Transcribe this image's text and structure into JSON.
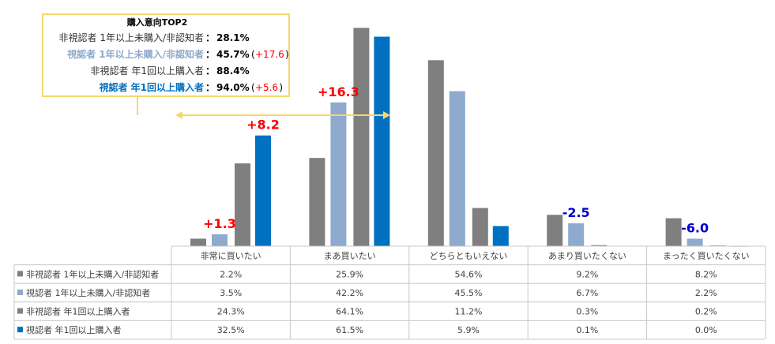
{
  "chart_data": {
    "type": "bar",
    "title": "",
    "xlabel": "",
    "ylabel": "",
    "ylim": [
      0,
      70
    ],
    "categories": [
      "非常に買いたい",
      "まあ買いたい",
      "どちらともいえない",
      "あまり買いたくない",
      "まったく買いたくない"
    ],
    "series": [
      {
        "name": "非視認者 1年以上未購入/非認知者",
        "color": "#7f7f7f",
        "values": [
          2.2,
          25.9,
          54.6,
          9.2,
          8.2
        ],
        "value_labels": [
          "2.2%",
          "25.9%",
          "54.6%",
          "9.2%",
          "8.2%"
        ]
      },
      {
        "name": "視認者 1年以上未購入/非認知者",
        "color": "#8eaacc",
        "values": [
          3.5,
          42.2,
          45.5,
          6.7,
          2.2
        ],
        "value_labels": [
          "3.5%",
          "42.2%",
          "45.5%",
          "6.7%",
          "2.2%"
        ]
      },
      {
        "name": "非視認者 年1回以上購入者",
        "color": "#7f7f7f",
        "values": [
          24.3,
          64.1,
          11.2,
          0.3,
          0.2
        ],
        "value_labels": [
          "24.3%",
          "64.1%",
          "11.2%",
          "0.3%",
          "0.2%"
        ]
      },
      {
        "name": "視認者 年1回以上購入者",
        "color": "#0070c0",
        "values": [
          32.5,
          61.5,
          5.9,
          0.1,
          0.0
        ],
        "value_labels": [
          "32.5%",
          "61.5%",
          "5.9%",
          "0.1%",
          "0.0%"
        ]
      }
    ],
    "annotations": [
      {
        "category": "非常に買いたい",
        "series": 1,
        "text": "+1.3",
        "color": "#ff0000"
      },
      {
        "category": "非常に買いたい",
        "series": 3,
        "text": "+8.2",
        "color": "#ff0000"
      },
      {
        "category": "まあ買いたい",
        "series": 1,
        "text": "+16.3",
        "color": "#ff0000"
      },
      {
        "category": "あまり買いたくない",
        "series": 1,
        "text": "-2.5",
        "color": "#0000cc"
      },
      {
        "category": "まったく買いたくない",
        "series": 1,
        "text": "-6.0",
        "color": "#0000cc"
      }
    ],
    "callout": {
      "title": "購入意向TOP2",
      "rows": [
        {
          "label": "非視認者 1年以上未購入/非認知者",
          "value": "28.1%",
          "diff": "",
          "label_color": "#333333"
        },
        {
          "label": "視認者 1年以上未購入/非認知者",
          "value": "45.7%",
          "diff": "+17.6",
          "label_color": "#8eaacc"
        },
        {
          "label": "非視認者 年1回以上購入者",
          "value": "88.4%",
          "diff": "",
          "label_color": "#333333"
        },
        {
          "label": "視認者 年1回以上購入者",
          "value": "94.0%",
          "diff": "+5.6",
          "label_color": "#0070c0"
        }
      ],
      "border_color": "#f5d76e",
      "diff_color": "#ff0000"
    }
  }
}
